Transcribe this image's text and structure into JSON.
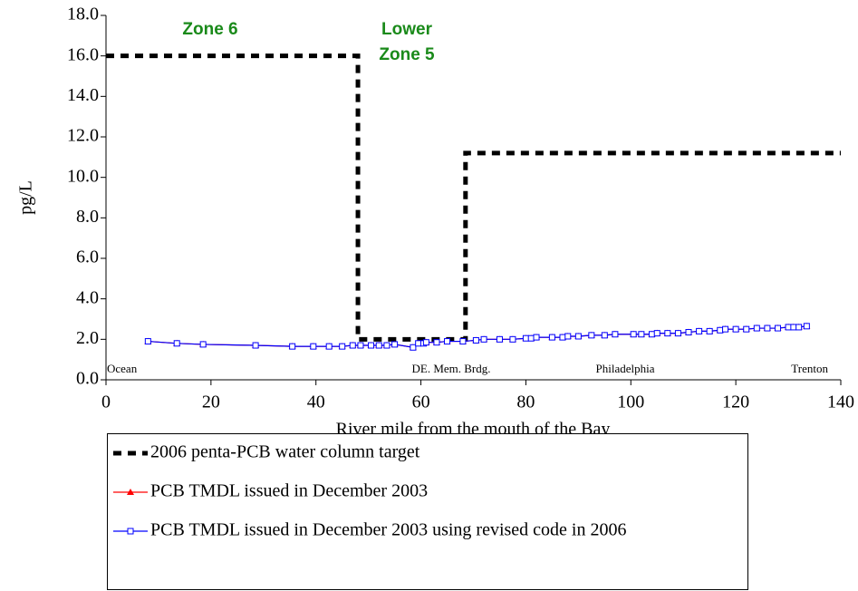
{
  "chart_data": {
    "type": "line",
    "y_label": "pg/L",
    "x_label": "River mile from the mouth of the Bay",
    "xlim": [
      0,
      140
    ],
    "xticks": [
      0,
      20,
      40,
      60,
      80,
      100,
      120,
      140
    ],
    "ylim": [
      0,
      18
    ],
    "yticks": [
      {
        "value": 0,
        "label": "0.0"
      },
      {
        "value": 2,
        "label": "2.0"
      },
      {
        "value": 4,
        "label": "4.0"
      },
      {
        "value": 6,
        "label": "6.0"
      },
      {
        "value": 8,
        "label": "8.0"
      },
      {
        "value": 10,
        "label": "10.0"
      },
      {
        "value": 12,
        "label": "12.0"
      },
      {
        "value": 14,
        "label": "14.0"
      },
      {
        "value": 16,
        "label": "16.0"
      },
      {
        "value": 18,
        "label": "18.0"
      }
    ],
    "grid": false,
    "legend": "bottom",
    "zone_labels": [
      {
        "lines": [
          "Zone 6"
        ]
      },
      {
        "lines": [
          "Lower",
          "Zone 5"
        ]
      }
    ],
    "location_labels": [
      "Ocean",
      "DE. Mem. Brdg.",
      "Philadelphia",
      "Trenton"
    ],
    "series": [
      {
        "name": "2006 penta-PCB water column target",
        "color": "#000000",
        "style": "dashed",
        "x": [
          0,
          48,
          48,
          68.5,
          68.5,
          140
        ],
        "values": [
          16,
          16,
          2,
          2,
          11.2,
          11.2
        ]
      },
      {
        "name": "PCB TMDL issued in December 2003",
        "color": "#ff0000",
        "marker": "triangle",
        "x": [
          8,
          13.5,
          18.5,
          28.5,
          35.5,
          39.5,
          42.5,
          45,
          47,
          48.5,
          50.5,
          52,
          53.5,
          55,
          58.5,
          59.5,
          60.5,
          61,
          63,
          65,
          68,
          70.5,
          72,
          75,
          77.5,
          80,
          81,
          82,
          85,
          87,
          88,
          90,
          92.5,
          95,
          97,
          100.5,
          102,
          104,
          105,
          107,
          109,
          111,
          113,
          115,
          117,
          118,
          120,
          122,
          124,
          126,
          128,
          130,
          131,
          132,
          133.5
        ],
        "values": [
          1.9,
          1.8,
          1.75,
          1.7,
          1.65,
          1.65,
          1.65,
          1.65,
          1.7,
          1.7,
          1.7,
          1.7,
          1.7,
          1.75,
          1.6,
          1.8,
          1.8,
          1.85,
          1.85,
          1.9,
          1.9,
          1.95,
          2.0,
          2.0,
          2.0,
          2.05,
          2.05,
          2.1,
          2.1,
          2.1,
          2.15,
          2.15,
          2.2,
          2.2,
          2.25,
          2.25,
          2.25,
          2.25,
          2.3,
          2.3,
          2.3,
          2.35,
          2.4,
          2.4,
          2.45,
          2.5,
          2.5,
          2.5,
          2.55,
          2.55,
          2.55,
          2.6,
          2.6,
          2.6,
          2.65
        ]
      },
      {
        "name": "PCB TMDL issued in December 2003 using revised code in 2006",
        "color": "#0000ff",
        "marker": "square",
        "x": [
          8,
          13.5,
          18.5,
          28.5,
          35.5,
          39.5,
          42.5,
          45,
          47,
          48.5,
          50.5,
          52,
          53.5,
          55,
          58.5,
          59.5,
          60.5,
          61,
          63,
          65,
          68,
          70.5,
          72,
          75,
          77.5,
          80,
          81,
          82,
          85,
          87,
          88,
          90,
          92.5,
          95,
          97,
          100.5,
          102,
          104,
          105,
          107,
          109,
          111,
          113,
          115,
          117,
          118,
          120,
          122,
          124,
          126,
          128,
          130,
          131,
          132,
          133.5
        ],
        "values": [
          1.9,
          1.8,
          1.75,
          1.7,
          1.65,
          1.65,
          1.65,
          1.65,
          1.7,
          1.7,
          1.7,
          1.7,
          1.7,
          1.75,
          1.6,
          1.8,
          1.8,
          1.85,
          1.85,
          1.9,
          1.9,
          1.95,
          2.0,
          2.0,
          2.0,
          2.05,
          2.05,
          2.1,
          2.1,
          2.1,
          2.15,
          2.15,
          2.2,
          2.2,
          2.25,
          2.25,
          2.25,
          2.25,
          2.3,
          2.3,
          2.3,
          2.35,
          2.4,
          2.4,
          2.45,
          2.5,
          2.5,
          2.5,
          2.55,
          2.55,
          2.55,
          2.6,
          2.6,
          2.6,
          2.65
        ]
      }
    ]
  }
}
